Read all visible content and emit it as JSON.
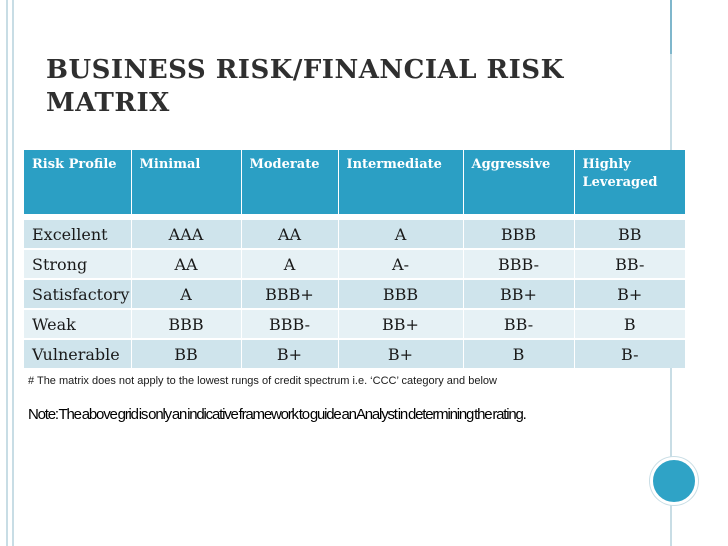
{
  "slide": {
    "title": "BUSINESS RISK/FINANCIAL RISK MATRIX",
    "footnote": "# The matrix does not apply to the lowest rungs of credit spectrum i.e. ‘CCC’ category and below",
    "note": "Note: The above grid is only an indicative framework to guide an Analyst in determining the rating."
  },
  "table": {
    "headers": [
      "Risk Profile",
      "Minimal",
      "Moderate",
      "Intermediate",
      "Aggressive",
      "Highly Leveraged"
    ],
    "rows": [
      [
        "Excellent",
        "AAA",
        "AA",
        "A",
        "BBB",
        "BB"
      ],
      [
        "Strong",
        "AA",
        "A",
        "A-",
        "BBB-",
        "BB-"
      ],
      [
        "Satisfactory",
        "A",
        "BBB+",
        "BBB",
        "BB+",
        "B+"
      ],
      [
        "Weak",
        "BBB",
        "BBB-",
        "BB+",
        "BB-",
        "B"
      ],
      [
        "Vulnerable",
        "BB",
        "B+",
        "B+",
        "B",
        "B-"
      ]
    ]
  },
  "colors": {
    "header": "#2b9fc4",
    "row_dark": "#cfe4ec",
    "row_light": "#e6f1f5",
    "accent_circle": "#2fa3c6"
  }
}
